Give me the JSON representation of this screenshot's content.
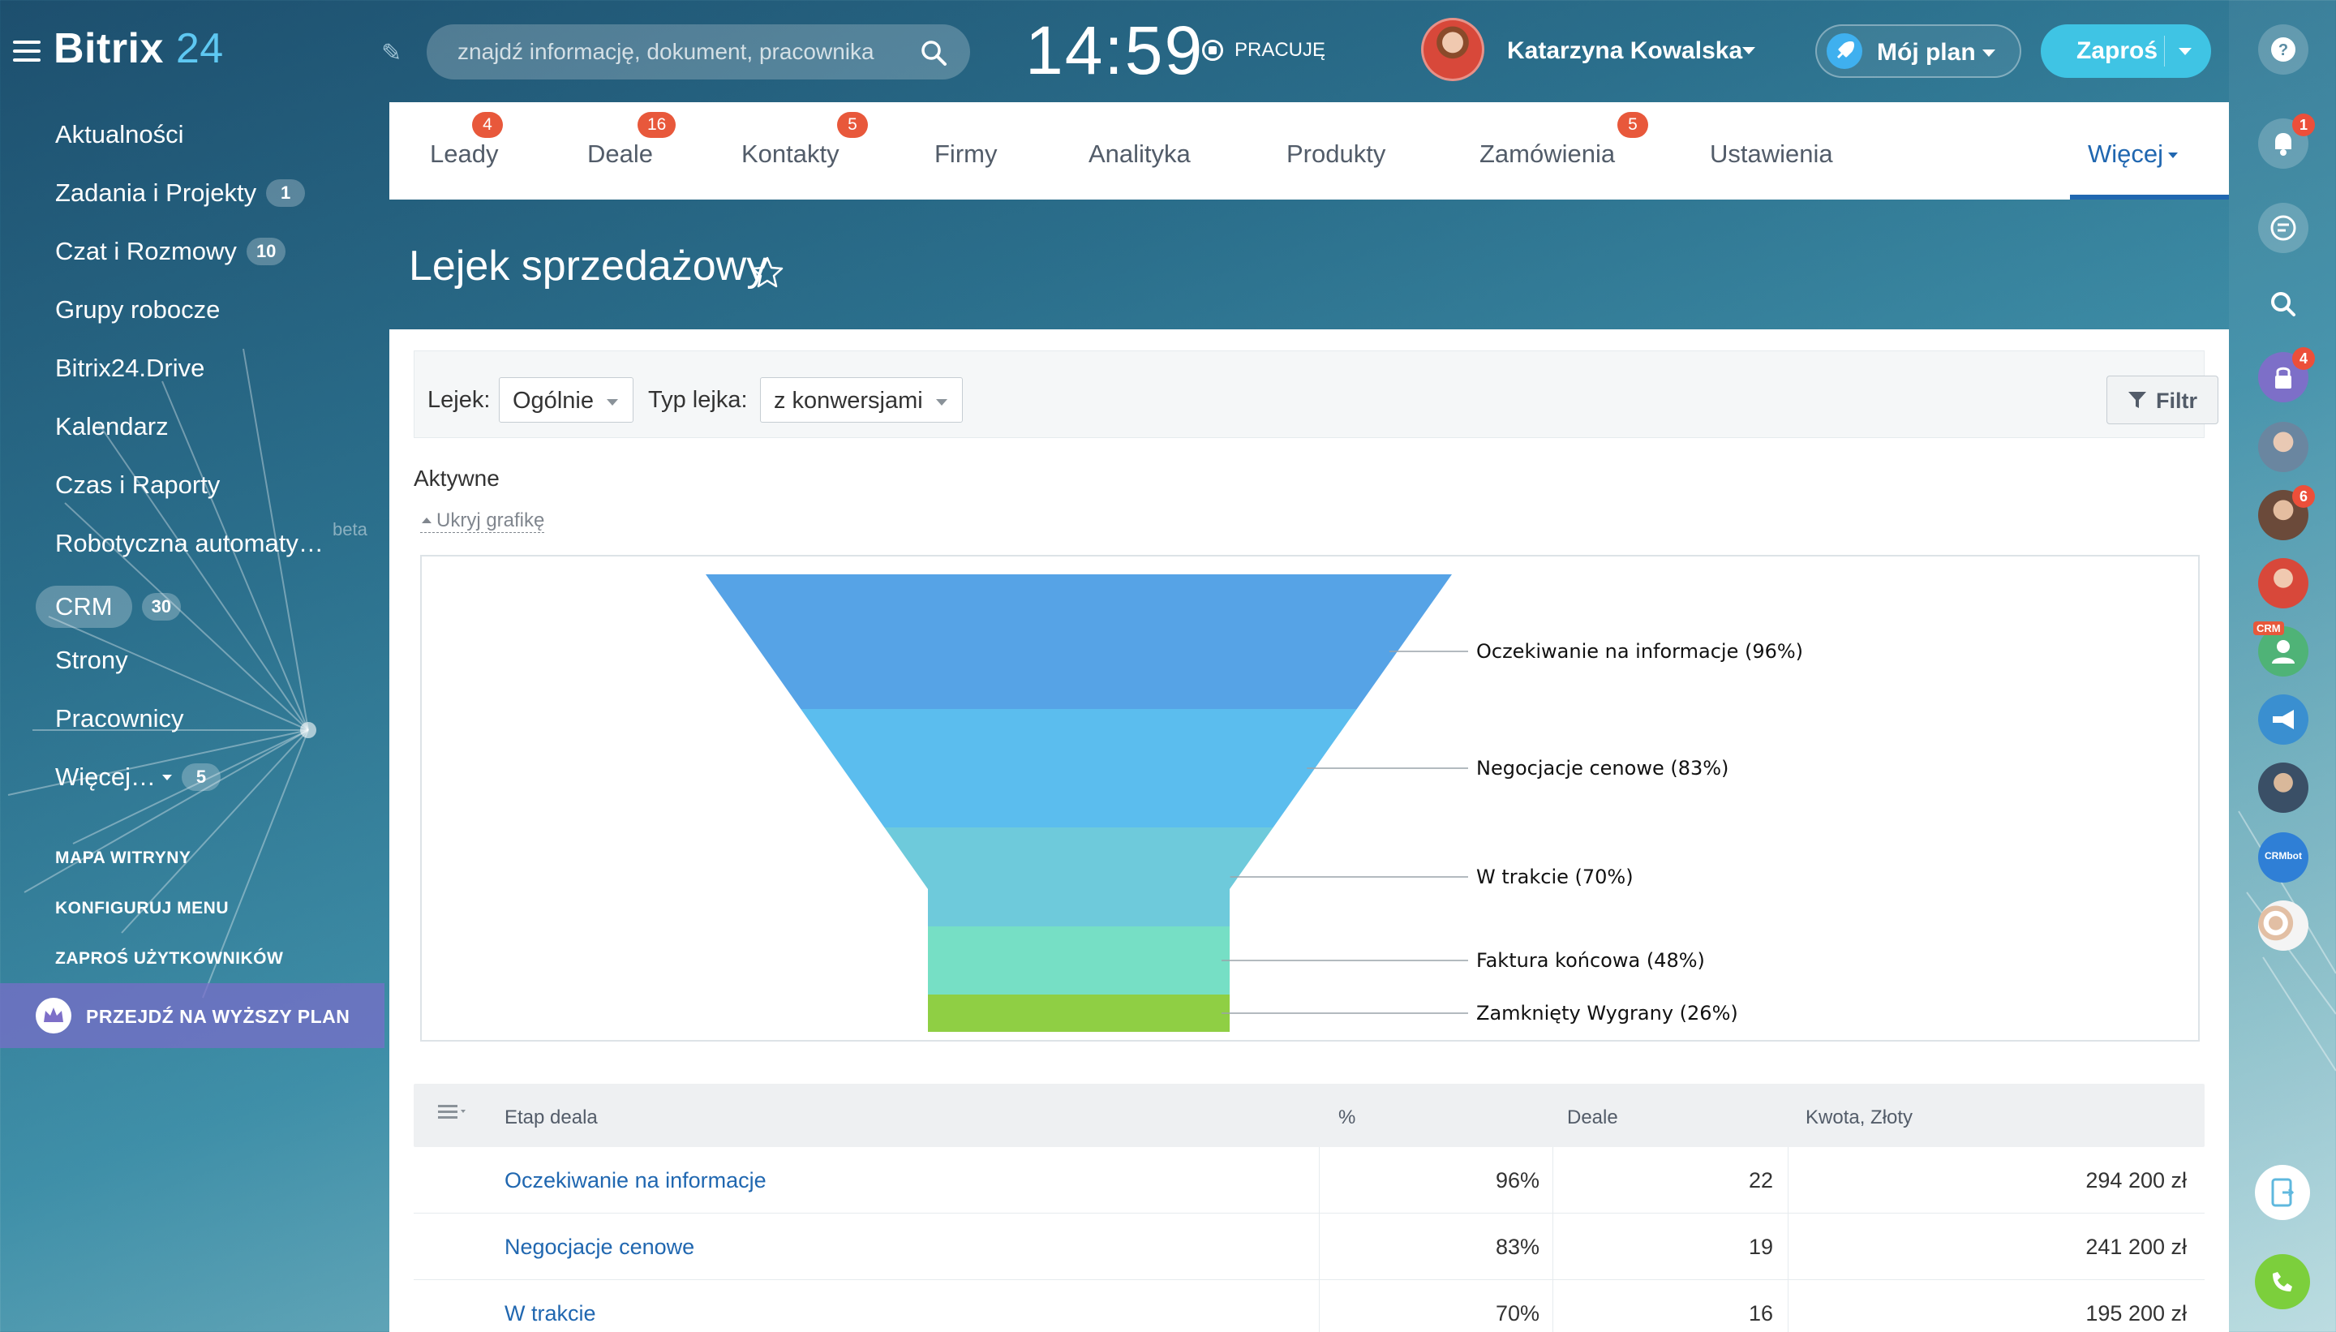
{
  "topbar": {
    "logo_main": "Bitrix",
    "logo_num": " 24",
    "search_placeholder": "znajdź informację, dokument, pracownika",
    "clock": "14:59",
    "work_status": "PRACUJĘ",
    "user_name": "Katarzyna Kowalska",
    "plan_label": "Mój plan",
    "invite_label": "Zaproś"
  },
  "sidebar": {
    "items": [
      {
        "label": "Aktualności",
        "counter": ""
      },
      {
        "label": "Zadania i Projekty",
        "counter": "1"
      },
      {
        "label": "Czat i Rozmowy",
        "counter": "10"
      },
      {
        "label": "Grupy robocze",
        "counter": ""
      },
      {
        "label": "Bitrix24.Drive",
        "counter": ""
      },
      {
        "label": "Kalendarz",
        "counter": ""
      },
      {
        "label": "Czas i Raporty",
        "counter": ""
      },
      {
        "label": "Robotyczna automaty…",
        "counter": "",
        "tag": "beta"
      },
      {
        "label": "CRM",
        "counter": "30"
      },
      {
        "label": "Strony",
        "counter": ""
      },
      {
        "label": "Pracownicy",
        "counter": ""
      },
      {
        "label": "Więcej…",
        "counter": "5"
      }
    ],
    "links": [
      "MAPA WITRYNY",
      "KONFIGURUJ MENU",
      "ZAPROŚ UŻYTKOWNIKÓW"
    ],
    "upgrade_label": "PRZEJDŹ NA WYŻSZY PLAN"
  },
  "tabs": [
    {
      "label": "Leady",
      "badge": "4"
    },
    {
      "label": "Deale",
      "badge": "16"
    },
    {
      "label": "Kontakty",
      "badge": "5"
    },
    {
      "label": "Firmy",
      "badge": ""
    },
    {
      "label": "Analityka",
      "badge": ""
    },
    {
      "label": "Produkty",
      "badge": ""
    },
    {
      "label": "Zamówienia",
      "badge": "5"
    },
    {
      "label": "Ustawienia",
      "badge": ""
    },
    {
      "label": "Więcej",
      "badge": ""
    }
  ],
  "page": {
    "title": "Lejek sprzedażowy",
    "filter": {
      "funnel_label": "Lejek:",
      "funnel_value": "Ogólnie",
      "type_label": "Typ lejka:",
      "type_value": "z konwersjami",
      "filter_button": "Filtr"
    },
    "section_title": "Aktywne",
    "toggle_chart": "Ukryj grafikę"
  },
  "rightbar": {
    "notifications_badge": "1",
    "lock_badge": "4",
    "user2_badge": "6",
    "crm_tag": "CRM",
    "crmbot_label": "CRMbot"
  },
  "chart_data": {
    "type": "funnel",
    "stages": [
      {
        "label": "Oczekiwanie na informacje (96%)",
        "name": "Oczekiwanie na informacje",
        "percent": 96,
        "color": "#56a3e6"
      },
      {
        "label": "Negocjacje cenowe (83%)",
        "name": "Negocjacje cenowe",
        "percent": 83,
        "color": "#5bbdee"
      },
      {
        "label": "W trakcie (70%)",
        "name": "W trakcie",
        "percent": 70,
        "color": "#6ecadb"
      },
      {
        "label": "Faktura końcowa (48%)",
        "name": "Faktura końcowa",
        "percent": 48,
        "color": "#76dfc5"
      },
      {
        "label": "Zamknięty Wygrany (26%)",
        "name": "Zamknięty Wygrany",
        "percent": 26,
        "color": "#8fcf44"
      }
    ]
  },
  "table": {
    "headers": [
      "Etap deala",
      "%",
      "Deale",
      "Kwota, Złoty"
    ],
    "rows": [
      {
        "stage": "Oczekiwanie na informacje",
        "percent": "96%",
        "deals": "22",
        "amount": "294 200 zł"
      },
      {
        "stage": "Negocjacje cenowe",
        "percent": "83%",
        "deals": "19",
        "amount": "241 200 zł"
      },
      {
        "stage": "W trakcie",
        "percent": "70%",
        "deals": "16",
        "amount": "195 200 zł"
      }
    ]
  }
}
